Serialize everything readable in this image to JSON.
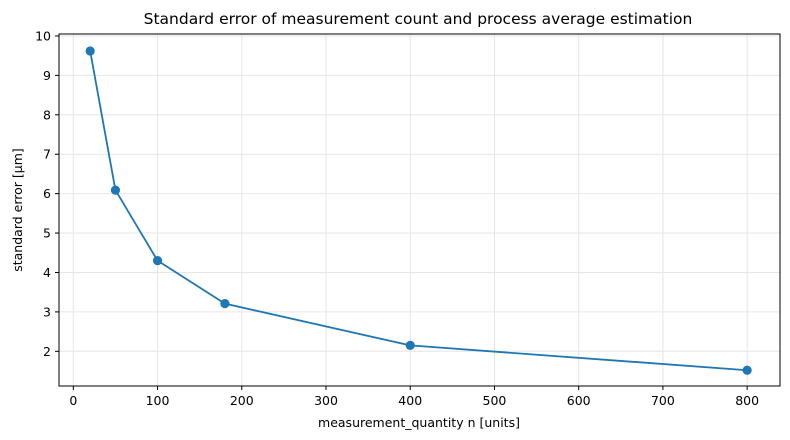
{
  "chart_data": {
    "type": "line",
    "title": "Standard error of measurement count and process average estimation",
    "xlabel": "measurement_quantity n [units]",
    "ylabel": "standard error [μm]",
    "xlim": [
      -17,
      839
    ],
    "ylim": [
      1.12,
      10.05
    ],
    "xticks": [
      0,
      100,
      200,
      300,
      400,
      500,
      600,
      700,
      800
    ],
    "yticks": [
      2,
      3,
      4,
      5,
      6,
      7,
      8,
      9,
      10
    ],
    "grid": true,
    "legend": "none",
    "series": [
      {
        "color": "#1f77b4",
        "marker": "circle",
        "x": [
          20,
          50,
          100,
          180,
          400,
          800
        ],
        "y": [
          9.62,
          6.09,
          4.3,
          3.21,
          2.15,
          1.52
        ]
      }
    ]
  }
}
